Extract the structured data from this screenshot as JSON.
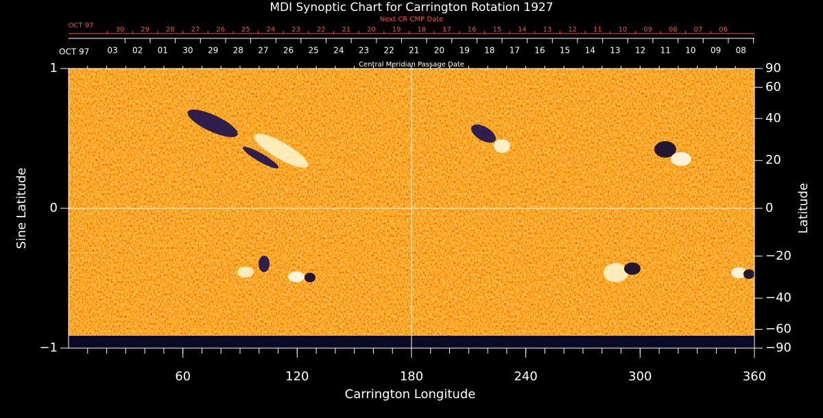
{
  "chart_data": {
    "type": "synoptic_map",
    "title": "MDI Synoptic Chart for Carrington Rotation 1927",
    "xlabel": "Carrington Longitude",
    "ylabel": "Sine Latitude",
    "y2label": "Latitude",
    "xlim": [
      0,
      360
    ],
    "xticks": [
      60,
      120,
      180,
      240,
      300,
      360
    ],
    "xminor_step": 10,
    "ylim": [
      -1,
      1
    ],
    "yticks": [
      1,
      0,
      {
        "value": -1,
        "label": "−1"
      }
    ],
    "y2scale": "sine",
    "y2ticks": [
      90,
      60,
      40,
      20,
      0,
      {
        "value": -20,
        "label": "−20"
      },
      {
        "value": -40,
        "label": "−40"
      },
      {
        "value": -60,
        "label": "−60"
      },
      {
        "value": -90,
        "label": "−90"
      }
    ],
    "reference_lines": {
      "x": 180,
      "y": 0
    },
    "date_axis": {
      "label": "Central Meridian Passage Date",
      "start": "OCT 97",
      "dates": [
        "03",
        "02",
        "01",
        "30",
        "29",
        "28",
        "27",
        "26",
        "25",
        "24",
        "23",
        "22",
        "21",
        "20",
        "19",
        "18",
        "17",
        "16",
        "15",
        "14",
        "13",
        "12",
        "11",
        "10",
        "09",
        "08"
      ]
    },
    "next_date_axis": {
      "label": "Next CR CMP Date",
      "start": "OCT 97",
      "dates": [
        "30",
        "29",
        "28",
        "27",
        "26",
        "25",
        "24",
        "23",
        "22",
        "21",
        "20",
        "19",
        "18",
        "17",
        "16",
        "15",
        "14",
        "13",
        "12",
        "11",
        "10",
        "09",
        "08",
        "07",
        "06"
      ]
    }
  }
}
